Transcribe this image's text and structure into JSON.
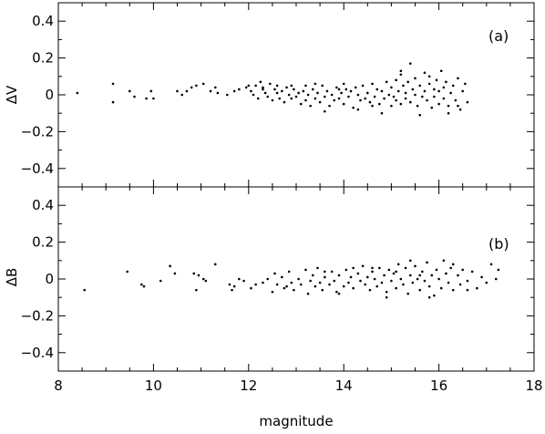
{
  "chart_data": [
    {
      "type": "scatter",
      "panel_tag": "(a)",
      "ylabel": "ΔV",
      "xlim": [
        8,
        18
      ],
      "ylim": [
        -0.5,
        0.5
      ],
      "yticks": [
        -0.4,
        -0.2,
        0,
        0.2,
        0.4
      ],
      "ytick_labels": [
        "−0.4",
        "−0.2",
        "0",
        "0.2",
        "0.4"
      ],
      "x_minor_tick_step": 0.5,
      "y_minor_tick_step": 0.1,
      "points": [
        [
          8.4,
          0.01
        ],
        [
          9.15,
          0.06
        ],
        [
          9.15,
          -0.04
        ],
        [
          9.5,
          0.02
        ],
        [
          9.6,
          -0.01
        ],
        [
          9.85,
          -0.02
        ],
        [
          9.95,
          0.02
        ],
        [
          10.0,
          -0.02
        ],
        [
          10.5,
          0.02
        ],
        [
          10.6,
          0.0
        ],
        [
          10.7,
          0.02
        ],
        [
          10.8,
          0.04
        ],
        [
          10.9,
          0.05
        ],
        [
          11.05,
          0.06
        ],
        [
          11.2,
          0.02
        ],
        [
          11.3,
          0.04
        ],
        [
          11.35,
          0.01
        ],
        [
          11.55,
          0.0
        ],
        [
          11.7,
          0.02
        ],
        [
          11.8,
          0.03
        ],
        [
          11.95,
          0.04
        ],
        [
          12.05,
          0.02
        ],
        [
          12.1,
          0.0
        ],
        [
          12.15,
          0.05
        ],
        [
          12.2,
          -0.02
        ],
        [
          12.25,
          0.07
        ],
        [
          12.3,
          0.03
        ],
        [
          12.35,
          0.01
        ],
        [
          12.4,
          -0.01
        ],
        [
          12.45,
          0.06
        ],
        [
          12.5,
          -0.03
        ],
        [
          12.55,
          0.03
        ],
        [
          12.6,
          0.01
        ],
        [
          12.65,
          -0.02
        ],
        [
          12.7,
          0.02
        ],
        [
          12.75,
          -0.04
        ],
        [
          12.8,
          0.04
        ],
        [
          12.85,
          0.0
        ],
        [
          12.9,
          -0.02
        ],
        [
          12.95,
          0.03
        ],
        [
          13.0,
          -0.01
        ],
        [
          13.05,
          0.01
        ],
        [
          13.1,
          -0.05
        ],
        [
          13.15,
          0.02
        ],
        [
          13.2,
          -0.03
        ],
        [
          13.25,
          0.0
        ],
        [
          13.3,
          -0.06
        ],
        [
          13.35,
          0.03
        ],
        [
          13.4,
          -0.02
        ],
        [
          13.45,
          0.01
        ],
        [
          13.5,
          -0.04
        ],
        [
          13.55,
          0.05
        ],
        [
          13.6,
          -0.01
        ],
        [
          13.65,
          0.02
        ],
        [
          13.7,
          -0.06
        ],
        [
          13.75,
          0.0
        ],
        [
          13.8,
          -0.03
        ],
        [
          13.85,
          0.04
        ],
        [
          13.9,
          -0.02
        ],
        [
          13.95,
          0.01
        ],
        [
          14.0,
          -0.05
        ],
        [
          14.05,
          0.03
        ],
        [
          14.1,
          -0.01
        ],
        [
          14.15,
          0.02
        ],
        [
          14.2,
          -0.07
        ],
        [
          14.25,
          0.04
        ],
        [
          14.3,
          0.0
        ],
        [
          14.35,
          -0.03
        ],
        [
          14.4,
          0.05
        ],
        [
          14.45,
          -0.02
        ],
        [
          14.5,
          0.01
        ],
        [
          14.55,
          -0.04
        ],
        [
          14.6,
          0.06
        ],
        [
          14.65,
          -0.01
        ],
        [
          14.7,
          0.03
        ],
        [
          14.75,
          -0.05
        ],
        [
          14.8,
          0.02
        ],
        [
          14.85,
          -0.02
        ],
        [
          14.9,
          0.07
        ],
        [
          14.95,
          0.0
        ],
        [
          15.0,
          -0.06
        ],
        [
          15.0,
          0.04
        ],
        [
          15.05,
          -0.01
        ],
        [
          15.1,
          0.08
        ],
        [
          15.1,
          -0.03
        ],
        [
          15.15,
          0.02
        ],
        [
          15.2,
          0.11
        ],
        [
          15.2,
          -0.05
        ],
        [
          15.25,
          0.05
        ],
        [
          15.3,
          -0.02
        ],
        [
          15.3,
          0.01
        ],
        [
          15.35,
          0.07
        ],
        [
          15.4,
          0.17
        ],
        [
          15.4,
          -0.04
        ],
        [
          15.45,
          0.03
        ],
        [
          15.5,
          0.0
        ],
        [
          15.5,
          0.09
        ],
        [
          15.55,
          -0.06
        ],
        [
          15.6,
          0.05
        ],
        [
          15.65,
          -0.01
        ],
        [
          15.7,
          0.12
        ],
        [
          15.7,
          0.02
        ],
        [
          15.75,
          -0.03
        ],
        [
          15.8,
          0.06
        ],
        [
          15.85,
          -0.07
        ],
        [
          15.9,
          0.03
        ],
        [
          15.9,
          -0.01
        ],
        [
          15.95,
          0.08
        ],
        [
          16.0,
          0.02
        ],
        [
          16.0,
          -0.05
        ],
        [
          16.05,
          0.13
        ],
        [
          16.1,
          0.04
        ],
        [
          16.1,
          -0.02
        ],
        [
          16.15,
          0.07
        ],
        [
          16.2,
          -0.06
        ],
        [
          16.25,
          0.01
        ],
        [
          16.3,
          0.05
        ],
        [
          16.35,
          -0.03
        ],
        [
          16.4,
          0.09
        ],
        [
          16.45,
          -0.08
        ],
        [
          16.5,
          0.02
        ],
        [
          16.55,
          0.06
        ],
        [
          16.6,
          -0.04
        ],
        [
          14.3,
          -0.08
        ],
        [
          13.6,
          -0.09
        ],
        [
          14.8,
          -0.1
        ],
        [
          15.6,
          -0.11
        ],
        [
          16.2,
          -0.1
        ],
        [
          12.3,
          0.04
        ],
        [
          12.6,
          0.05
        ],
        [
          13.2,
          0.05
        ],
        [
          14.0,
          0.06
        ],
        [
          14.6,
          -0.06
        ],
        [
          15.2,
          0.13
        ],
        [
          15.8,
          0.1
        ],
        [
          16.4,
          -0.06
        ],
        [
          13.9,
          0.03
        ],
        [
          13.4,
          0.06
        ],
        [
          12.9,
          0.05
        ],
        [
          12.0,
          0.05
        ]
      ]
    },
    {
      "type": "scatter",
      "panel_tag": "(b)",
      "ylabel": "ΔB",
      "xlabel": "magnitude",
      "xlim": [
        8,
        18
      ],
      "ylim": [
        -0.5,
        0.5
      ],
      "xticks": [
        8,
        10,
        12,
        14,
        16,
        18
      ],
      "xtick_labels": [
        "8",
        "10",
        "12",
        "14",
        "16",
        "18"
      ],
      "yticks": [
        -0.4,
        -0.2,
        0,
        0.2,
        0.4
      ],
      "ytick_labels": [
        "−0.4",
        "−0.2",
        "0",
        "0.2",
        "0.4"
      ],
      "x_minor_tick_step": 0.5,
      "y_minor_tick_step": 0.1,
      "points": [
        [
          8.55,
          -0.06
        ],
        [
          9.45,
          0.04
        ],
        [
          9.75,
          -0.03
        ],
        [
          9.8,
          -0.04
        ],
        [
          10.15,
          -0.01
        ],
        [
          10.35,
          0.07
        ],
        [
          10.45,
          0.03
        ],
        [
          10.85,
          0.03
        ],
        [
          10.9,
          -0.06
        ],
        [
          10.95,
          0.02
        ],
        [
          11.05,
          0.0
        ],
        [
          11.1,
          -0.01
        ],
        [
          11.3,
          0.08
        ],
        [
          11.6,
          -0.03
        ],
        [
          11.65,
          -0.06
        ],
        [
          11.7,
          -0.04
        ],
        [
          11.8,
          0.0
        ],
        [
          11.9,
          -0.01
        ],
        [
          12.05,
          -0.05
        ],
        [
          12.15,
          -0.03
        ],
        [
          12.3,
          -0.02
        ],
        [
          12.4,
          0.0
        ],
        [
          12.5,
          -0.07
        ],
        [
          12.55,
          0.03
        ],
        [
          12.6,
          -0.03
        ],
        [
          12.7,
          0.01
        ],
        [
          12.75,
          -0.05
        ],
        [
          12.85,
          0.04
        ],
        [
          12.9,
          -0.02
        ],
        [
          12.95,
          -0.06
        ],
        [
          13.05,
          0.0
        ],
        [
          13.1,
          -0.03
        ],
        [
          13.2,
          0.05
        ],
        [
          13.25,
          -0.08
        ],
        [
          13.3,
          -0.01
        ],
        [
          13.35,
          0.02
        ],
        [
          13.4,
          -0.04
        ],
        [
          13.45,
          0.06
        ],
        [
          13.5,
          -0.02
        ],
        [
          13.55,
          -0.06
        ],
        [
          13.6,
          0.01
        ],
        [
          13.7,
          -0.03
        ],
        [
          13.75,
          0.04
        ],
        [
          13.8,
          -0.01
        ],
        [
          13.85,
          -0.07
        ],
        [
          13.9,
          0.02
        ],
        [
          14.0,
          -0.04
        ],
        [
          14.05,
          0.05
        ],
        [
          14.1,
          -0.02
        ],
        [
          14.15,
          0.01
        ],
        [
          14.2,
          -0.05
        ],
        [
          14.3,
          0.03
        ],
        [
          14.35,
          -0.01
        ],
        [
          14.4,
          0.07
        ],
        [
          14.45,
          -0.03
        ],
        [
          14.5,
          0.01
        ],
        [
          14.55,
          -0.06
        ],
        [
          14.6,
          0.04
        ],
        [
          14.65,
          0.0
        ],
        [
          14.7,
          -0.04
        ],
        [
          14.75,
          0.06
        ],
        [
          14.8,
          -0.02
        ],
        [
          14.85,
          0.02
        ],
        [
          14.9,
          -0.07
        ],
        [
          14.95,
          0.05
        ],
        [
          15.0,
          -0.01
        ],
        [
          15.05,
          0.03
        ],
        [
          15.1,
          -0.05
        ],
        [
          15.15,
          0.08
        ],
        [
          15.2,
          0.0
        ],
        [
          15.25,
          -0.03
        ],
        [
          15.3,
          0.06
        ],
        [
          15.35,
          -0.08
        ],
        [
          15.4,
          0.02
        ],
        [
          15.45,
          -0.02
        ],
        [
          15.5,
          0.07
        ],
        [
          15.55,
          0.0
        ],
        [
          15.6,
          -0.06
        ],
        [
          15.65,
          0.04
        ],
        [
          15.7,
          -0.01
        ],
        [
          15.75,
          0.09
        ],
        [
          15.8,
          -0.04
        ],
        [
          15.85,
          0.02
        ],
        [
          15.9,
          -0.09
        ],
        [
          15.95,
          0.05
        ],
        [
          16.0,
          0.0
        ],
        [
          16.05,
          -0.05
        ],
        [
          16.1,
          0.1
        ],
        [
          16.15,
          0.03
        ],
        [
          16.2,
          -0.02
        ],
        [
          16.25,
          0.06
        ],
        [
          16.3,
          -0.06
        ],
        [
          16.4,
          0.02
        ],
        [
          16.45,
          -0.03
        ],
        [
          16.5,
          0.05
        ],
        [
          16.6,
          -0.01
        ],
        [
          16.7,
          0.04
        ],
        [
          16.8,
          -0.05
        ],
        [
          16.9,
          0.01
        ],
        [
          17.0,
          -0.02
        ],
        [
          17.1,
          0.08
        ],
        [
          17.2,
          0.0
        ],
        [
          17.25,
          0.05
        ],
        [
          15.4,
          0.1
        ],
        [
          14.9,
          -0.1
        ],
        [
          15.8,
          -0.1
        ],
        [
          14.6,
          0.06
        ],
        [
          13.9,
          -0.08
        ],
        [
          16.3,
          0.08
        ],
        [
          15.1,
          0.04
        ],
        [
          12.8,
          -0.04
        ],
        [
          13.6,
          0.04
        ],
        [
          14.2,
          0.06
        ],
        [
          16.6,
          -0.06
        ],
        [
          15.6,
          0.02
        ]
      ]
    }
  ]
}
